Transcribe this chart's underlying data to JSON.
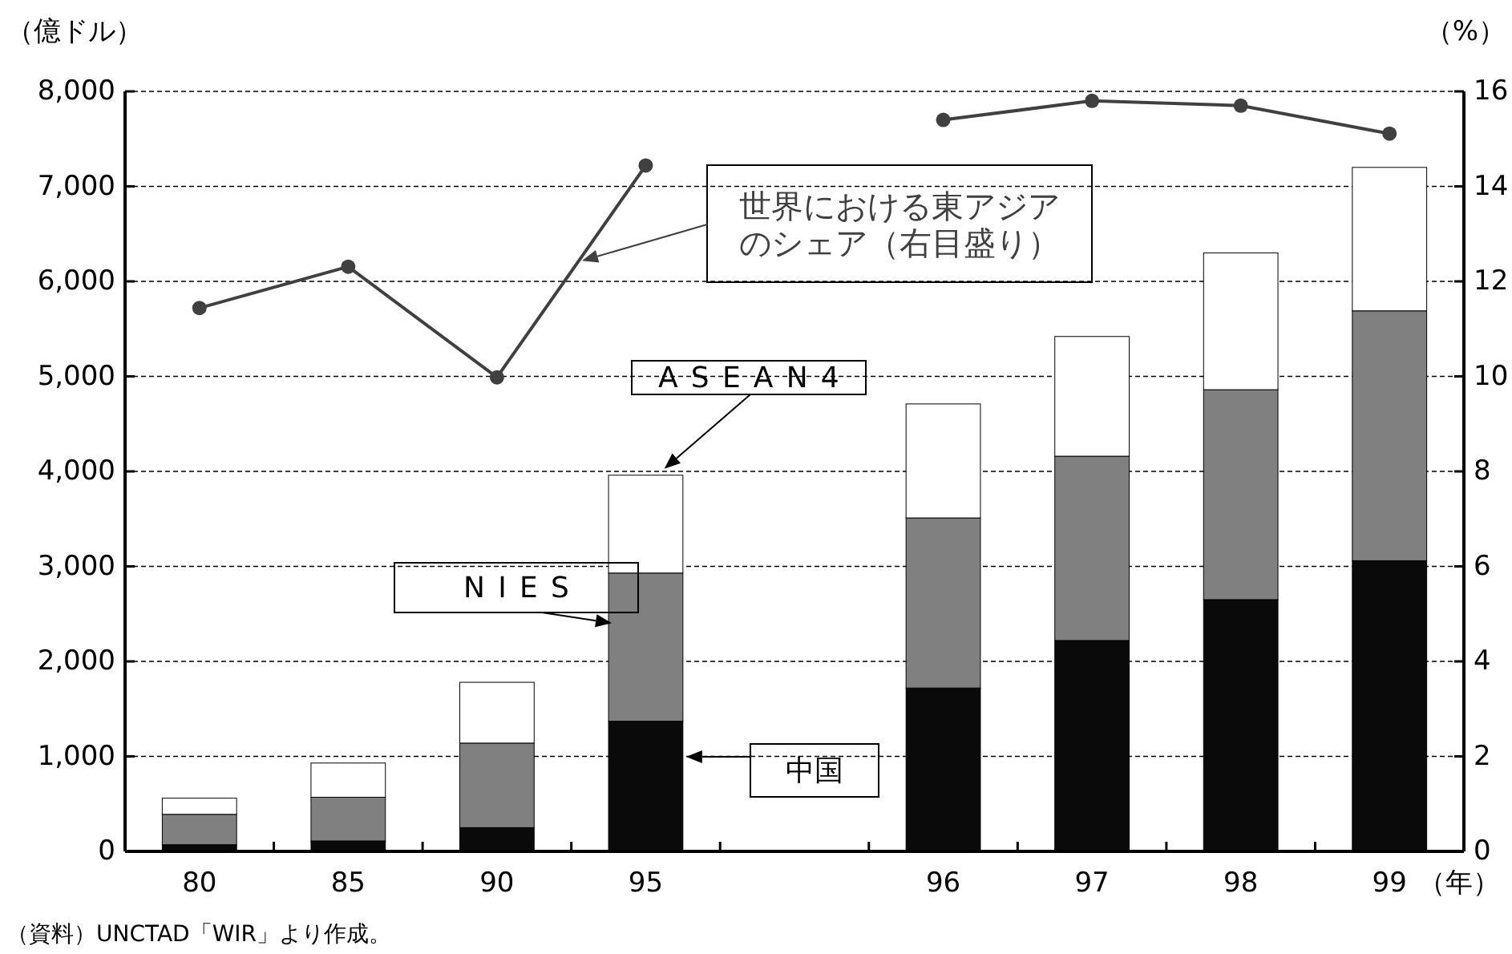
{
  "chart_data": {
    "type": "bar",
    "stacked": true,
    "ylabel": "（億ドル）",
    "y2label": "（%）",
    "xlabel": "（年）",
    "categories": [
      "80",
      "85",
      "90",
      "95",
      null,
      "96",
      "97",
      "98",
      "99"
    ],
    "series": [
      {
        "name": "中国",
        "color": "#0a0a0a",
        "values": [
          70,
          110,
          250,
          1370,
          null,
          1720,
          2220,
          2650,
          3060
        ]
      },
      {
        "name": "NIES",
        "color": "#808080",
        "values": [
          320,
          460,
          890,
          1560,
          null,
          1790,
          1940,
          2210,
          2630
        ]
      },
      {
        "name": "ASEAN4",
        "color": "#ffffff",
        "values": [
          170,
          360,
          640,
          1030,
          null,
          1200,
          1260,
          1440,
          1510
        ]
      },
      {
        "name": "世界における東アジアのシェア（右目盛り）",
        "type": "line",
        "axis": "y2",
        "color": "#404040",
        "marker": "circle",
        "values": [
          11.44,
          12.31,
          9.98,
          14.44,
          null,
          15.4,
          15.8,
          15.7,
          15.11
        ]
      }
    ],
    "ylim": [
      0,
      8000
    ],
    "yticks": [
      0,
      {
        "value": 1000,
        "label": "1,000"
      },
      {
        "value": 2000,
        "label": "2,000"
      },
      {
        "value": 3000,
        "label": "3,000"
      },
      {
        "value": 4000,
        "label": "4,000"
      },
      {
        "value": 5000,
        "label": "5,000"
      },
      {
        "value": 6000,
        "label": "6,000"
      },
      {
        "value": 7000,
        "label": "7,000"
      },
      {
        "value": 8000,
        "label": "8,000"
      }
    ],
    "y2lim": [
      0,
      16
    ],
    "y2ticks": [
      0,
      2,
      4,
      6,
      8,
      10,
      12,
      14,
      16
    ],
    "grid": "y",
    "legend": "bottom right",
    "annotations": [
      "（資料）UNCTAD「WIR」より作成。"
    ]
  }
}
